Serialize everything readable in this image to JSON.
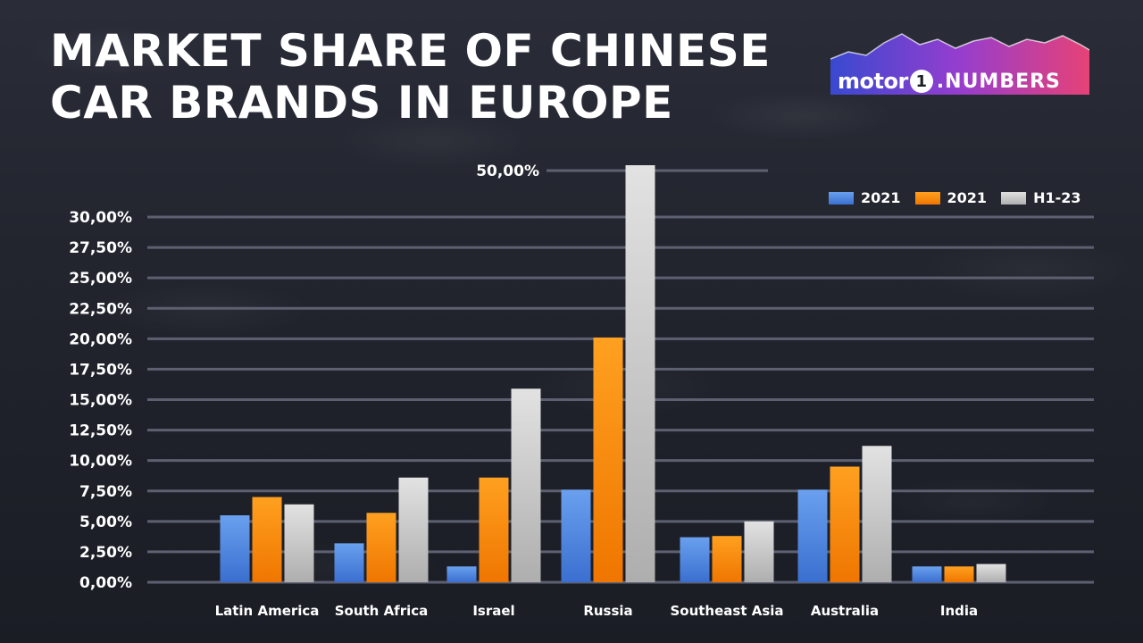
{
  "title": "MARKET SHARE OF CHINESE CAR BRANDS IN EUROPE",
  "logo": {
    "word": "motor",
    "number": "1",
    "suffix": ".NUMBERS"
  },
  "colors": {
    "series_2021_a": "#4f8ae0",
    "series_2021_b": "#f58a07",
    "series_h1_23": "#c8c8c8",
    "gridline": "#5d6070"
  },
  "chart_data": {
    "type": "bar",
    "title": "MARKET SHARE OF CHINESE CAR BRANDS IN EUROPE",
    "xlabel": "",
    "ylabel": "",
    "categories": [
      "Latin America",
      "South Africa",
      "Israel",
      "Russia",
      "Southeast Asia",
      "Australia",
      "India"
    ],
    "series": [
      {
        "name": "2021",
        "values": [
          5.5,
          3.2,
          1.3,
          7.6,
          3.7,
          7.6,
          1.3
        ]
      },
      {
        "name": "2021",
        "values": [
          7.0,
          5.7,
          8.6,
          20.1,
          3.8,
          9.5,
          1.3
        ]
      },
      {
        "name": "H1-23",
        "values": [
          6.4,
          8.6,
          15.9,
          34.3,
          5.0,
          11.2,
          1.5
        ]
      }
    ],
    "y_ticks": [
      "0,00%",
      "2,50%",
      "5,00%",
      "7,50%",
      "10,00%",
      "12,50%",
      "15,00%",
      "17,50%",
      "20,00%",
      "22,50%",
      "25,00%",
      "27,50%",
      "30,00%"
    ],
    "y_tick_values": [
      0,
      2.5,
      5,
      7.5,
      10,
      12.5,
      15,
      17.5,
      20,
      22.5,
      25,
      27.5,
      30
    ],
    "extra_tick": {
      "label": "50,00%",
      "value": 50
    },
    "ylim": [
      0,
      30
    ],
    "axis_break": true,
    "grid": true,
    "legend_position": "top-right"
  }
}
